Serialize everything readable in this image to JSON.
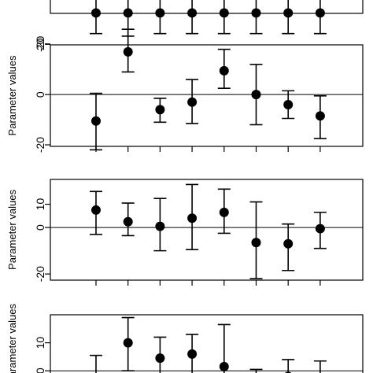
{
  "chart_data": [
    {
      "type": "scatter",
      "ylabel": "",
      "yticks": [
        -20
      ],
      "ylim": [
        -25,
        25
      ],
      "reference_line": null,
      "points": [
        {
          "x": 1,
          "y": 4,
          "lo": -12,
          "hi": 20
        },
        {
          "x": 2,
          "y": 4,
          "lo": -14,
          "hi": 22
        },
        {
          "x": 3,
          "y": 4,
          "lo": -12,
          "hi": 20
        },
        {
          "x": 4,
          "y": 4,
          "lo": -12,
          "hi": 20
        },
        {
          "x": 5,
          "y": 4,
          "lo": -12,
          "hi": 20
        },
        {
          "x": 6,
          "y": 4,
          "lo": -12,
          "hi": 20
        },
        {
          "x": 7,
          "y": 4,
          "lo": -12,
          "hi": 20
        },
        {
          "x": 8,
          "y": 4,
          "lo": -12,
          "hi": 20
        }
      ]
    },
    {
      "type": "scatter",
      "ylabel": "Parameter values",
      "yticks": [
        -20,
        0,
        20
      ],
      "ylim": [
        -25,
        32
      ],
      "reference_line": 0,
      "points": [
        {
          "x": 1,
          "y": -10.5,
          "lo": -22,
          "hi": 0.5
        },
        {
          "x": 2,
          "y": 17,
          "lo": 9,
          "hi": 26
        },
        {
          "x": 3,
          "y": -6,
          "lo": -11,
          "hi": -1.5
        },
        {
          "x": 4,
          "y": -3,
          "lo": -11.5,
          "hi": 6
        },
        {
          "x": 5,
          "y": 9.5,
          "lo": 2.5,
          "hi": 18
        },
        {
          "x": 6,
          "y": 0,
          "lo": -12,
          "hi": 12
        },
        {
          "x": 7,
          "y": -4,
          "lo": -9.5,
          "hi": 1.5
        },
        {
          "x": 8,
          "y": -8.5,
          "lo": -17.5,
          "hi": -0.5
        }
      ]
    },
    {
      "type": "scatter",
      "ylabel": "Parameter values",
      "yticks": [
        -20,
        0,
        10
      ],
      "ylim": [
        -24,
        20
      ],
      "reference_line": 0,
      "points": [
        {
          "x": 1,
          "y": 7.5,
          "lo": -3,
          "hi": 15.5
        },
        {
          "x": 2,
          "y": 2.5,
          "lo": -3.5,
          "hi": 10.5
        },
        {
          "x": 3,
          "y": 0.5,
          "lo": -10,
          "hi": 12.5
        },
        {
          "x": 4,
          "y": 4,
          "lo": -9.5,
          "hi": 18.5
        },
        {
          "x": 5,
          "y": 6.5,
          "lo": -2.5,
          "hi": 16.5
        },
        {
          "x": 6,
          "y": -6.5,
          "lo": -22,
          "hi": 11
        },
        {
          "x": 7,
          "y": -7,
          "lo": -18.5,
          "hi": 1.5
        },
        {
          "x": 8,
          "y": -0.5,
          "lo": -9,
          "hi": 6.5
        }
      ]
    },
    {
      "type": "scatter",
      "ylabel": "Parameter values",
      "yticks": [
        0,
        10
      ],
      "ylim": [
        -5,
        20
      ],
      "reference_line": 0,
      "points": [
        {
          "x": 1,
          "y": null,
          "lo": -6,
          "hi": 5.5
        },
        {
          "x": 2,
          "y": 10,
          "lo": 0,
          "hi": 19
        },
        {
          "x": 3,
          "y": 4.5,
          "lo": -1,
          "hi": 12
        },
        {
          "x": 4,
          "y": 6,
          "lo": -1.5,
          "hi": 13
        },
        {
          "x": 5,
          "y": 1.5,
          "lo": -6,
          "hi": 16.5
        },
        {
          "x": 6,
          "y": null,
          "lo": -6,
          "hi": 0.5
        },
        {
          "x": 7,
          "y": -2,
          "lo": -6,
          "hi": 4
        },
        {
          "x": 8,
          "y": -3,
          "lo": -6,
          "hi": 3.5
        }
      ]
    }
  ]
}
